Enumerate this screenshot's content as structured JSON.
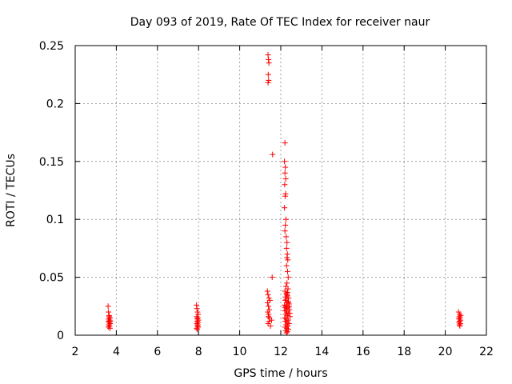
{
  "chart_data": {
    "type": "scatter",
    "title": "Day 093 of 2019, Rate Of TEC Index for receiver naur",
    "xlabel": "GPS time / hours",
    "ylabel": "ROTI / TECUs",
    "xlim": [
      2,
      22
    ],
    "ylim": [
      0,
      0.25
    ],
    "x_ticks": [
      "2",
      "4",
      "6",
      "8",
      "10",
      "12",
      "14",
      "16",
      "18",
      "20",
      "22"
    ],
    "y_ticks": [
      "0",
      "0.05",
      "0.1",
      "0.15",
      "0.2",
      "0.25"
    ],
    "x_tick_values": [
      2,
      4,
      6,
      8,
      10,
      12,
      14,
      16,
      18,
      20,
      22
    ],
    "y_tick_values": [
      0,
      0.05,
      0.1,
      0.15,
      0.2,
      0.25
    ],
    "grid": true,
    "marker": "+",
    "colors": {
      "points": "#ff0000",
      "grid": "#a0a0a0",
      "axes": "#000000"
    },
    "series": [
      {
        "points": [
          [
            3.6,
            0.025
          ],
          [
            3.62,
            0.02
          ],
          [
            3.65,
            0.017
          ],
          [
            3.7,
            0.015
          ],
          [
            3.63,
            0.014
          ],
          [
            3.68,
            0.013
          ],
          [
            3.61,
            0.012
          ],
          [
            3.66,
            0.011
          ],
          [
            3.7,
            0.01
          ],
          [
            3.64,
            0.009
          ],
          [
            3.67,
            0.008
          ],
          [
            3.62,
            0.007
          ],
          [
            3.69,
            0.006
          ],
          [
            3.65,
            0.016
          ],
          [
            3.71,
            0.012
          ],
          [
            7.9,
            0.026
          ],
          [
            7.92,
            0.023
          ],
          [
            7.95,
            0.02
          ],
          [
            7.98,
            0.018
          ],
          [
            7.91,
            0.016
          ],
          [
            7.96,
            0.015
          ],
          [
            7.94,
            0.014
          ],
          [
            7.99,
            0.013
          ],
          [
            7.93,
            0.012
          ],
          [
            7.97,
            0.011
          ],
          [
            7.92,
            0.01
          ],
          [
            7.96,
            0.009
          ],
          [
            7.95,
            0.008
          ],
          [
            7.98,
            0.007
          ],
          [
            7.91,
            0.006
          ],
          [
            7.94,
            0.005
          ],
          [
            11.38,
            0.242
          ],
          [
            11.4,
            0.238
          ],
          [
            11.42,
            0.235
          ],
          [
            11.39,
            0.225
          ],
          [
            11.41,
            0.22
          ],
          [
            11.38,
            0.218
          ],
          [
            11.6,
            0.156
          ],
          [
            11.58,
            0.05
          ],
          [
            11.35,
            0.038
          ],
          [
            11.38,
            0.035
          ],
          [
            11.42,
            0.032
          ],
          [
            11.36,
            0.028
          ],
          [
            11.4,
            0.025
          ],
          [
            11.44,
            0.022
          ],
          [
            11.37,
            0.02
          ],
          [
            11.41,
            0.018
          ],
          [
            11.39,
            0.016
          ],
          [
            11.45,
            0.015
          ],
          [
            11.43,
            0.012
          ],
          [
            11.38,
            0.01
          ],
          [
            11.5,
            0.008
          ],
          [
            11.55,
            0.013
          ],
          [
            11.47,
            0.03
          ],
          [
            12.2,
            0.166
          ],
          [
            12.18,
            0.15
          ],
          [
            12.22,
            0.145
          ],
          [
            12.2,
            0.14
          ],
          [
            12.24,
            0.135
          ],
          [
            12.19,
            0.13
          ],
          [
            12.23,
            0.122
          ],
          [
            12.21,
            0.12
          ],
          [
            12.18,
            0.11
          ],
          [
            12.25,
            0.1
          ],
          [
            12.22,
            0.095
          ],
          [
            12.2,
            0.09
          ],
          [
            12.26,
            0.085
          ],
          [
            12.3,
            0.08
          ],
          [
            12.28,
            0.075
          ],
          [
            12.32,
            0.07
          ],
          [
            12.3,
            0.067
          ],
          [
            12.34,
            0.065
          ],
          [
            12.28,
            0.06
          ],
          [
            12.33,
            0.055
          ],
          [
            12.36,
            0.05
          ],
          [
            12.3,
            0.045
          ],
          [
            12.25,
            0.042
          ],
          [
            12.35,
            0.04
          ],
          [
            12.2,
            0.038
          ],
          [
            12.27,
            0.036
          ],
          [
            12.32,
            0.034
          ],
          [
            12.38,
            0.032
          ],
          [
            12.22,
            0.03
          ],
          [
            12.3,
            0.028
          ],
          [
            12.4,
            0.027
          ],
          [
            12.18,
            0.026
          ],
          [
            12.25,
            0.025
          ],
          [
            12.35,
            0.024
          ],
          [
            12.28,
            0.023
          ],
          [
            12.42,
            0.022
          ],
          [
            12.2,
            0.021
          ],
          [
            12.3,
            0.02
          ],
          [
            12.38,
            0.019
          ],
          [
            12.24,
            0.018
          ],
          [
            12.33,
            0.017
          ],
          [
            12.45,
            0.016
          ],
          [
            12.19,
            0.015
          ],
          [
            12.27,
            0.014
          ],
          [
            12.36,
            0.013
          ],
          [
            12.22,
            0.012
          ],
          [
            12.31,
            0.011
          ],
          [
            12.4,
            0.01
          ],
          [
            12.26,
            0.009
          ],
          [
            12.34,
            0.008
          ],
          [
            12.21,
            0.007
          ],
          [
            12.29,
            0.006
          ],
          [
            12.37,
            0.005
          ],
          [
            12.24,
            0.004
          ],
          [
            12.32,
            0.003
          ],
          [
            12.28,
            0.002
          ],
          [
            12.23,
            0.033
          ],
          [
            12.37,
            0.029
          ],
          [
            12.26,
            0.031
          ],
          [
            12.41,
            0.025
          ],
          [
            12.3,
            0.035
          ],
          [
            12.35,
            0.028
          ],
          [
            12.2,
            0.024
          ],
          [
            12.44,
            0.019
          ],
          [
            12.27,
            0.022
          ],
          [
            12.33,
            0.037
          ],
          [
            20.65,
            0.02
          ],
          [
            20.7,
            0.018
          ],
          [
            20.75,
            0.017
          ],
          [
            20.68,
            0.016
          ],
          [
            20.72,
            0.015
          ],
          [
            20.66,
            0.014
          ],
          [
            20.74,
            0.013
          ],
          [
            20.7,
            0.012
          ],
          [
            20.67,
            0.011
          ],
          [
            20.73,
            0.01
          ],
          [
            20.69,
            0.009
          ],
          [
            20.71,
            0.008
          ]
        ]
      }
    ]
  }
}
